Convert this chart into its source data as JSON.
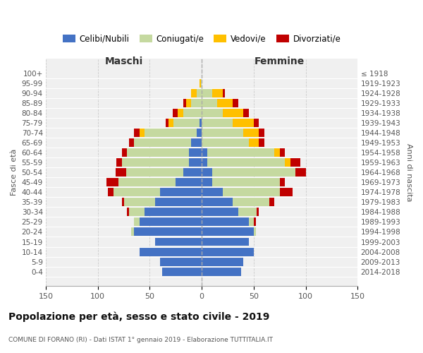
{
  "age_groups": [
    "0-4",
    "5-9",
    "10-14",
    "15-19",
    "20-24",
    "25-29",
    "30-34",
    "35-39",
    "40-44",
    "45-49",
    "50-54",
    "55-59",
    "60-64",
    "65-69",
    "70-74",
    "75-79",
    "80-84",
    "85-89",
    "90-94",
    "95-99",
    "100+"
  ],
  "birth_years": [
    "2014-2018",
    "2009-2013",
    "2004-2008",
    "1999-2003",
    "1994-1998",
    "1989-1993",
    "1984-1988",
    "1979-1983",
    "1974-1978",
    "1969-1973",
    "1964-1968",
    "1959-1963",
    "1954-1958",
    "1949-1953",
    "1944-1948",
    "1939-1943",
    "1934-1938",
    "1929-1933",
    "1924-1928",
    "1919-1923",
    "≤ 1918"
  ],
  "maschi": {
    "celibi": [
      38,
      40,
      60,
      45,
      65,
      60,
      55,
      45,
      40,
      25,
      18,
      12,
      12,
      10,
      5,
      2,
      0,
      0,
      0,
      0,
      0
    ],
    "coniugati": [
      0,
      0,
      0,
      0,
      3,
      5,
      15,
      30,
      45,
      55,
      55,
      65,
      60,
      55,
      50,
      25,
      18,
      10,
      5,
      1,
      0
    ],
    "vedovi": [
      0,
      0,
      0,
      0,
      0,
      0,
      0,
      0,
      0,
      0,
      0,
      0,
      0,
      0,
      5,
      5,
      5,
      5,
      5,
      1,
      0
    ],
    "divorziati": [
      0,
      0,
      0,
      0,
      0,
      0,
      2,
      2,
      5,
      12,
      10,
      5,
      5,
      5,
      5,
      3,
      5,
      3,
      0,
      0,
      0
    ]
  },
  "femmine": {
    "nubili": [
      38,
      40,
      50,
      45,
      50,
      45,
      35,
      30,
      20,
      10,
      10,
      5,
      5,
      0,
      0,
      0,
      0,
      0,
      0,
      0,
      0
    ],
    "coniugate": [
      0,
      0,
      0,
      0,
      2,
      5,
      18,
      35,
      55,
      65,
      80,
      75,
      65,
      45,
      40,
      30,
      20,
      15,
      10,
      0,
      0
    ],
    "vedove": [
      0,
      0,
      0,
      0,
      0,
      0,
      0,
      0,
      0,
      0,
      0,
      5,
      5,
      10,
      15,
      20,
      20,
      15,
      10,
      0,
      0
    ],
    "divorziate": [
      0,
      0,
      0,
      0,
      0,
      2,
      2,
      5,
      12,
      5,
      10,
      10,
      5,
      5,
      5,
      5,
      5,
      5,
      2,
      0,
      0
    ]
  },
  "colors": {
    "celibi_nubili": "#4472c4",
    "coniugati": "#c5d9a0",
    "vedovi": "#ffc000",
    "divorziati": "#c00000"
  },
  "title": "Popolazione per età, sesso e stato civile - 2019",
  "subtitle": "COMUNE DI FORANO (RI) - Dati ISTAT 1° gennaio 2019 - Elaborazione TUTTITALIA.IT",
  "xlabel_left": "Maschi",
  "xlabel_right": "Femmine",
  "ylabel_left": "Fasce di età",
  "ylabel_right": "Anni di nascita",
  "xlim": 150,
  "bg_color": "#f0f0f0",
  "grid_color": "#cccccc"
}
